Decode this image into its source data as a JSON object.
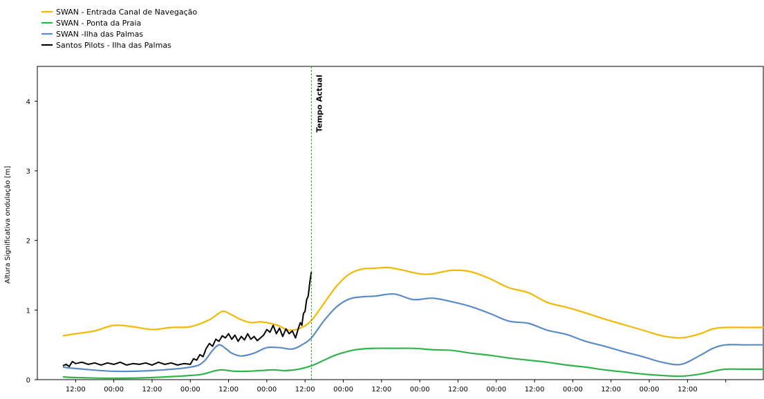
{
  "chart_data": {
    "type": "line",
    "ylabel": "Altura Significativa ondulação [m]",
    "xlabel": "",
    "ylim": [
      0,
      4.5
    ],
    "xlim": [
      -12,
      216
    ],
    "yticks": [
      0,
      1,
      2,
      3,
      4
    ],
    "ytick_labels": [
      "0",
      "1",
      "2",
      "3",
      "4"
    ],
    "xticks": [
      0,
      12,
      24,
      36,
      48,
      60,
      72,
      84,
      96,
      108,
      120,
      132,
      144,
      156,
      168,
      180,
      192,
      204
    ],
    "xtick_labels": [
      "12:00",
      "00:00",
      "12:00",
      "00:00",
      "12:00",
      "00:00",
      "12:00",
      "00:00",
      "12:00",
      "00:00",
      "12:00",
      "00:00",
      "12:00",
      "00:00",
      "12:00",
      "00:00",
      "12:00",
      ""
    ],
    "legend_position": "top-left",
    "grid": false,
    "marker": {
      "label": "Tempo Actual",
      "x": 74,
      "color": "#2e9c3f",
      "style": "dashed"
    },
    "series": [
      {
        "name": "SWAN -  Entrada Canal de Navegação",
        "color": "#f5b800",
        "x": [
          -4,
          0,
          6,
          12,
          18,
          24,
          30,
          36,
          42,
          46,
          49,
          52,
          55,
          58,
          61,
          64,
          66,
          68,
          71,
          74,
          78,
          82,
          86,
          90,
          94,
          98,
          102,
          108,
          112,
          118,
          124,
          130,
          136,
          142,
          148,
          154,
          160,
          166,
          172,
          178,
          184,
          190,
          196,
          200,
          204,
          210,
          216
        ],
        "values": [
          0.63,
          0.66,
          0.7,
          0.78,
          0.76,
          0.72,
          0.75,
          0.76,
          0.86,
          0.98,
          0.93,
          0.86,
          0.82,
          0.83,
          0.81,
          0.77,
          0.72,
          0.71,
          0.75,
          0.85,
          1.1,
          1.35,
          1.52,
          1.59,
          1.6,
          1.61,
          1.58,
          1.52,
          1.52,
          1.57,
          1.55,
          1.45,
          1.32,
          1.25,
          1.11,
          1.04,
          0.96,
          0.87,
          0.79,
          0.71,
          0.63,
          0.6,
          0.66,
          0.73,
          0.75,
          0.75,
          0.75
        ]
      },
      {
        "name": "SWAN - Ponta da Praia",
        "color": "#2fb34a",
        "x": [
          -4,
          0,
          12,
          24,
          36,
          40,
          44,
          46,
          48,
          50,
          54,
          58,
          62,
          66,
          70,
          74,
          78,
          82,
          88,
          94,
          100,
          106,
          112,
          118,
          124,
          130,
          136,
          142,
          148,
          154,
          160,
          166,
          172,
          178,
          184,
          190,
          196,
          200,
          204,
          210,
          216
        ],
        "values": [
          0.04,
          0.03,
          0.02,
          0.03,
          0.06,
          0.08,
          0.13,
          0.14,
          0.13,
          0.12,
          0.12,
          0.13,
          0.14,
          0.13,
          0.15,
          0.2,
          0.28,
          0.36,
          0.43,
          0.45,
          0.45,
          0.45,
          0.43,
          0.42,
          0.38,
          0.35,
          0.31,
          0.28,
          0.25,
          0.21,
          0.18,
          0.14,
          0.11,
          0.08,
          0.06,
          0.05,
          0.08,
          0.12,
          0.15,
          0.15,
          0.15
        ]
      },
      {
        "name": "SWAN -Ilha das Palmas",
        "color": "#5a8ac6",
        "x": [
          -4,
          0,
          12,
          24,
          36,
          40,
          43,
          45,
          47,
          49,
          52,
          56,
          60,
          64,
          68,
          71,
          74,
          78,
          82,
          86,
          90,
          94,
          100,
          106,
          112,
          118,
          124,
          130,
          136,
          142,
          148,
          154,
          160,
          166,
          172,
          178,
          184,
          190,
          196,
          200,
          204,
          210,
          216
        ],
        "values": [
          0.18,
          0.16,
          0.12,
          0.13,
          0.18,
          0.25,
          0.42,
          0.5,
          0.45,
          0.38,
          0.34,
          0.38,
          0.46,
          0.46,
          0.44,
          0.5,
          0.6,
          0.85,
          1.05,
          1.16,
          1.19,
          1.2,
          1.23,
          1.15,
          1.17,
          1.12,
          1.05,
          0.95,
          0.84,
          0.81,
          0.71,
          0.65,
          0.55,
          0.48,
          0.4,
          0.33,
          0.25,
          0.22,
          0.35,
          0.45,
          0.5,
          0.5,
          0.5
        ]
      },
      {
        "name": "Santos Pilots - Ilha das Palmas",
        "color": "#000000",
        "x": [
          -4,
          -3,
          -2,
          -1,
          0,
          2,
          4,
          6,
          8,
          10,
          12,
          14,
          16,
          18,
          20,
          22,
          24,
          26,
          28,
          30,
          32,
          34,
          36,
          37,
          38,
          39,
          40,
          41,
          42,
          43,
          44,
          45,
          46,
          47,
          48,
          49,
          50,
          51,
          52,
          53,
          54,
          55,
          56,
          57,
          58,
          59,
          60,
          61,
          62,
          63,
          64,
          65,
          66,
          67,
          68,
          69,
          70,
          70.5,
          71,
          71.5,
          72,
          72.5,
          73,
          73.5,
          74
        ],
        "values": [
          0.2,
          0.22,
          0.19,
          0.26,
          0.23,
          0.25,
          0.22,
          0.24,
          0.21,
          0.24,
          0.22,
          0.25,
          0.21,
          0.23,
          0.22,
          0.24,
          0.21,
          0.25,
          0.22,
          0.24,
          0.21,
          0.23,
          0.22,
          0.3,
          0.28,
          0.36,
          0.33,
          0.45,
          0.52,
          0.48,
          0.58,
          0.55,
          0.63,
          0.6,
          0.66,
          0.58,
          0.64,
          0.55,
          0.62,
          0.57,
          0.66,
          0.58,
          0.62,
          0.56,
          0.6,
          0.64,
          0.72,
          0.68,
          0.78,
          0.66,
          0.74,
          0.62,
          0.73,
          0.66,
          0.7,
          0.6,
          0.75,
          0.82,
          0.78,
          0.95,
          0.98,
          1.15,
          1.2,
          1.4,
          1.55
        ]
      }
    ]
  }
}
